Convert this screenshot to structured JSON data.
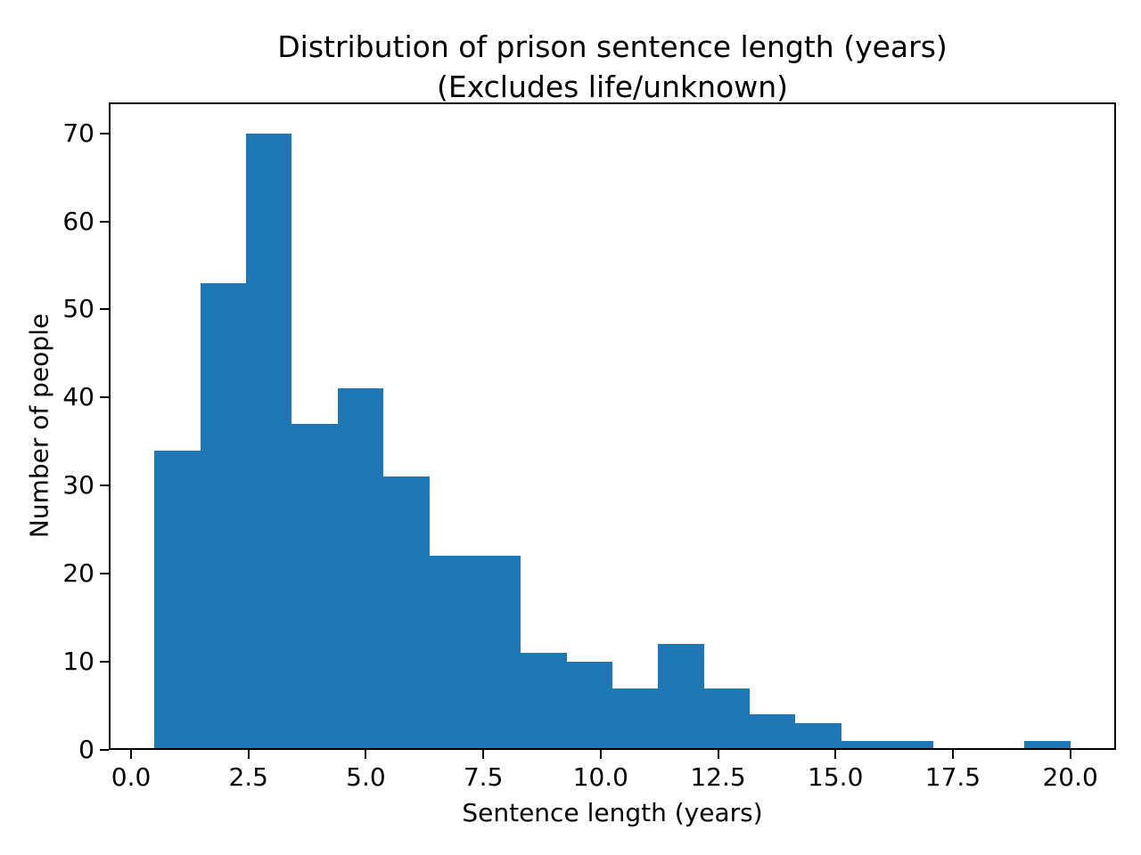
{
  "figure": {
    "background": "#ffffff",
    "text_color": "#000000"
  },
  "chart_data": {
    "type": "bar",
    "subtype": "histogram",
    "title": "Distribution of prison sentence length (years) (Excludes life/unknown)",
    "title_line1": "Distribution of prison sentence length (years)",
    "title_line2": "(Excludes life/unknown)",
    "xlabel": "Sentence length (years)",
    "ylabel": "Number of people",
    "bar_color": "#1f77b4",
    "grid": false,
    "legend_position": "none",
    "bin_edges": [
      0.5,
      1.475,
      2.45,
      3.425,
      4.4,
      5.375,
      6.35,
      7.325,
      8.3,
      9.275,
      10.25,
      11.225,
      12.2,
      13.175,
      14.15,
      15.125,
      16.1,
      17.075,
      18.05,
      19.025,
      20.0
    ],
    "counts": [
      34,
      53,
      70,
      37,
      41,
      31,
      22,
      22,
      11,
      10,
      7,
      12,
      7,
      4,
      3,
      1,
      1,
      0,
      0,
      1
    ],
    "total_count": 367,
    "xlim": [
      -0.475,
      20.975
    ],
    "ylim": [
      0,
      73.5
    ],
    "xtick_values": [
      0,
      2.5,
      5,
      7.5,
      10,
      12.5,
      15,
      17.5,
      20
    ],
    "xtick_labels": [
      "0.0",
      "2.5",
      "5.0",
      "7.5",
      "10.0",
      "12.5",
      "15.0",
      "17.5",
      "20.0"
    ],
    "ytick_values": [
      0,
      10,
      20,
      30,
      40,
      50,
      60,
      70
    ],
    "ytick_labels": [
      "0",
      "10",
      "20",
      "30",
      "40",
      "50",
      "60",
      "70"
    ]
  }
}
